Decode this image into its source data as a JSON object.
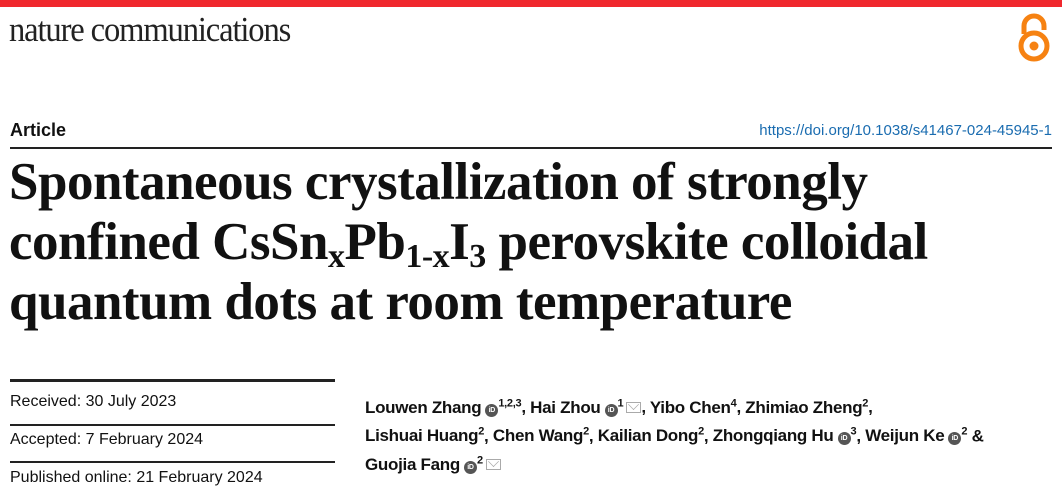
{
  "journal": {
    "name": "nature communications",
    "brand_color": "#f0282d",
    "open_access_icon": "open-access-lock-icon",
    "open_access_color": "#f68212"
  },
  "article_type": "Article",
  "doi": "https://doi.org/10.1038/s41467-024-45945-1",
  "title": {
    "line1": "Spontaneous crystallization of strongly",
    "line2_pre": "confined CsSn",
    "sub_x": "x",
    "line2_mid": "Pb",
    "sub_1x": "1-x",
    "line2_mid2": "I",
    "sub_3": "3",
    "line2_post": " perovskite colloidal",
    "line3": "quantum dots at room temperature"
  },
  "dates": {
    "received": "Received: 30 July 2023",
    "accepted": "Accepted: 7 February 2024",
    "published": "Published online: 21 February 2024"
  },
  "authors": [
    {
      "name": "Louwen Zhang",
      "aff": "1,2,3",
      "orcid": true,
      "sep": ", "
    },
    {
      "name": "Hai Zhou",
      "aff": "1",
      "orcid": true,
      "mail": true,
      "sep": ", "
    },
    {
      "name": "Yibo Chen",
      "aff": "4",
      "sep": ", "
    },
    {
      "name": "Zhimiao Zheng",
      "aff": "2",
      "sep": ","
    },
    {
      "name": "Lishuai Huang",
      "aff": "2",
      "sep": ", "
    },
    {
      "name": "Chen Wang",
      "aff": "2",
      "sep": ", "
    },
    {
      "name": "Kailian Dong",
      "aff": "2",
      "sep": ", "
    },
    {
      "name": "Zhongqiang Hu",
      "aff": "3",
      "orcid": true,
      "sep": ", "
    },
    {
      "name": "Weijun Ke",
      "aff": "2",
      "orcid": true,
      "sep": " &"
    },
    {
      "name": "Guojia Fang",
      "aff": "2",
      "orcid": true,
      "mail": true,
      "sep": ""
    }
  ]
}
